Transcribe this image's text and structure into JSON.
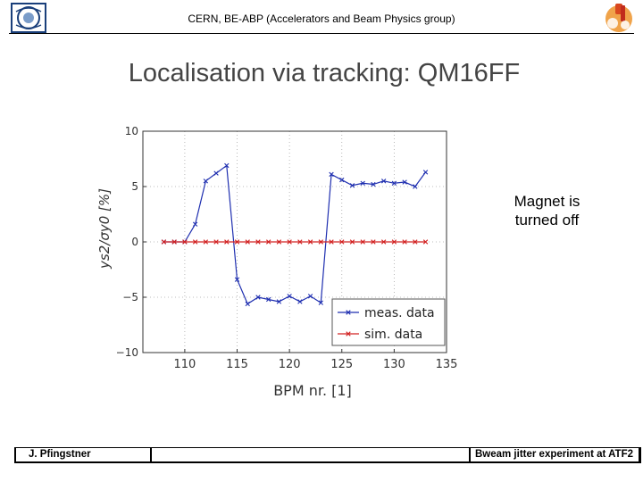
{
  "header": {
    "title": "CERN, BE-ABP (Accelerators and Beam Physics group)"
  },
  "slide": {
    "title": "Localisation via tracking: QM16FF",
    "note_line1": "Magnet is",
    "note_line2": "turned off"
  },
  "footer": {
    "author": "J. Pfingstner",
    "talk": "Bweam jitter experiment at ATF2"
  },
  "colors": {
    "meas": "#1f2fb0",
    "sim": "#d22323",
    "grid": "#a8a8a8"
  },
  "chart_data": {
    "type": "line",
    "xlabel": "BPM nr. [1]",
    "ylabel": "ys2/σy0 [%]",
    "xlim": [
      106,
      135
    ],
    "ylim": [
      -10,
      10
    ],
    "xticks": [
      110,
      115,
      120,
      125,
      130,
      135
    ],
    "yticks": [
      10,
      5,
      0,
      -5,
      -10
    ],
    "grid": "dotted",
    "legend_position": "bottom-right",
    "series": [
      {
        "name": "meas. data",
        "color": "#1f2fb0",
        "x": [
          108,
          109,
          110,
          111,
          112,
          113,
          114,
          115,
          116,
          117,
          118,
          119,
          120,
          121,
          122,
          123,
          124,
          125,
          126,
          127,
          128,
          129,
          130,
          131,
          132,
          133
        ],
        "y": [
          0,
          0,
          0,
          1.6,
          5.5,
          6.2,
          6.9,
          -3.4,
          -5.6,
          -5.0,
          -5.2,
          -5.4,
          -4.9,
          -5.4,
          -4.9,
          -5.5,
          6.1,
          5.6,
          5.1,
          5.3,
          5.2,
          5.5,
          5.3,
          5.4,
          5.0,
          6.3
        ]
      },
      {
        "name": "sim. data",
        "color": "#d22323",
        "x": [
          108,
          109,
          110,
          111,
          112,
          113,
          114,
          115,
          116,
          117,
          118,
          119,
          120,
          121,
          122,
          123,
          124,
          125,
          126,
          127,
          128,
          129,
          130,
          131,
          132,
          133
        ],
        "y": [
          0,
          0,
          0,
          0,
          0,
          0,
          0,
          0,
          0,
          0,
          0,
          0,
          0,
          0,
          0,
          0,
          0,
          0,
          0,
          0,
          0,
          0,
          0,
          0,
          0,
          0
        ]
      }
    ]
  }
}
